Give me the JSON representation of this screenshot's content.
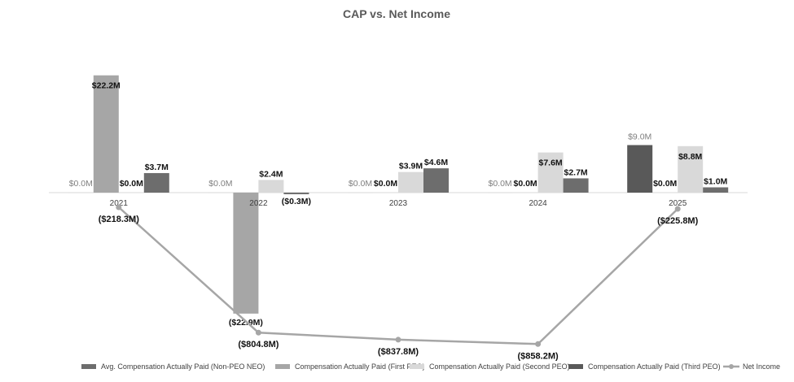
{
  "chart_data": {
    "type": "bar",
    "title": "CAP vs. Net Income",
    "categories": [
      "2021",
      "2022",
      "2023",
      "2024",
      "2025"
    ],
    "series": [
      {
        "name": "Avg. Compensation Actually Paid (Non-PEO NEO)",
        "color": "#595959",
        "values": [
          3.7,
          -0.3,
          4.6,
          2.7,
          1.0
        ],
        "labels": [
          "$3.7M",
          "($0.3M)",
          "$4.6M",
          "$2.7M",
          "$1.0M"
        ]
      },
      {
        "name": "Compensation Actually Paid (First PEO)",
        "color": "#a6a6a6",
        "values": [
          22.2,
          -22.9,
          0,
          0,
          0
        ],
        "labels": [
          "$22.2M",
          "($22.9M)",
          "$0.0M",
          "$0.0M",
          "$0.0M"
        ]
      },
      {
        "name": "Compensation Actually Paid (Second PEO)",
        "color": "#d9d9d9",
        "values": [
          0,
          2.4,
          3.9,
          7.6,
          8.8
        ],
        "labels": [
          "$0.0M",
          "$2.4M",
          "$3.9M",
          "$7.6M",
          "$8.8M"
        ]
      },
      {
        "name": "Compensation Actually Paid (Third PEO)",
        "color": "#595959",
        "values": [
          0,
          0,
          0,
          0,
          9.0
        ],
        "labels": [
          "$0.0M",
          "$0.0M",
          "$0.0M",
          "$0.0M",
          "$9.0M"
        ]
      },
      {
        "name": "Net Income",
        "type": "line",
        "color": "#a6a6a6",
        "values": [
          -218.3,
          -804.8,
          -837.8,
          -858.2,
          -225.8
        ],
        "labels": [
          "($218.3M)",
          "($804.8M)",
          "($837.8M)",
          "($858.2M)",
          "($225.8M)"
        ]
      }
    ],
    "legend_position": "bottom",
    "grid": false
  }
}
